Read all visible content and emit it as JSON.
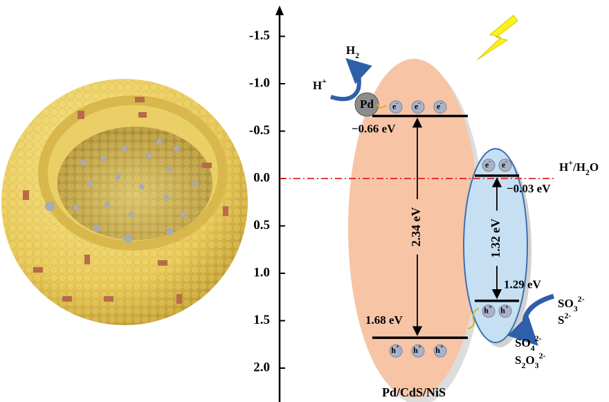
{
  "axis": {
    "ticks": [
      {
        "value": -1.5,
        "label": "-1.5"
      },
      {
        "value": -1.0,
        "label": "-1.0"
      },
      {
        "value": -0.5,
        "label": "-0.5"
      },
      {
        "value": 0.0,
        "label": "0.0"
      },
      {
        "value": 0.5,
        "label": "0.5"
      },
      {
        "value": 1.0,
        "label": "1.0"
      },
      {
        "value": 1.5,
        "label": "1.5"
      },
      {
        "value": 2.0,
        "label": "2.0"
      }
    ]
  },
  "levels": [
    {
      "value": -0.66,
      "label": "−0.66 eV"
    },
    {
      "value": 1.68,
      "label": "1.68 eV"
    },
    {
      "value": -0.03,
      "label": "−0.03 eV"
    },
    {
      "value": 1.29,
      "label": "1.29 eV"
    }
  ],
  "gaps": [
    "2.34 eV",
    "1.32 eV"
  ],
  "redox": {
    "value": 0.0,
    "label": [
      "H",
      "+",
      "/H",
      "2",
      "O"
    ]
  },
  "cocatalyst": "Pd",
  "h2": [
    "H",
    "2"
  ],
  "h_plus": [
    "H",
    "+"
  ],
  "electron": [
    "e",
    "-"
  ],
  "hole": [
    "h",
    "+"
  ],
  "sulfite": [
    "SO",
    "3",
    "2-"
  ],
  "sulfide": [
    "S",
    "2-"
  ],
  "sulfate": [
    "SO",
    "4",
    "2-"
  ],
  "thiosulfate": [
    "S",
    "2",
    "O",
    "3",
    "2-"
  ],
  "caption": "Pd/CdS/NiS"
}
